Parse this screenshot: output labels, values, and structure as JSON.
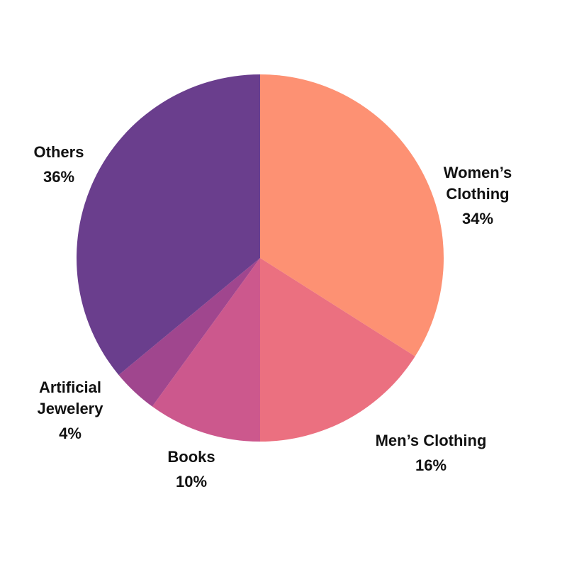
{
  "chart_data": {
    "type": "pie",
    "title": "",
    "slices": [
      {
        "label_lines": [
          "Women’s",
          "Clothing"
        ],
        "value": 34,
        "value_label": "34%",
        "color": "#FD9173"
      },
      {
        "label_lines": [
          "Men’s Clothing"
        ],
        "value": 16,
        "value_label": "16%",
        "color": "#EB7080"
      },
      {
        "label_lines": [
          "Books"
        ],
        "value": 10,
        "value_label": "10%",
        "color": "#CC588D"
      },
      {
        "label_lines": [
          "Artificial",
          "Jewelery"
        ],
        "value": 4,
        "value_label": "4%",
        "color": "#A0468E"
      },
      {
        "label_lines": [
          "Others"
        ],
        "value": 36,
        "value_label": "36%",
        "color": "#6A3E8D"
      }
    ],
    "start": "12 o'clock",
    "direction": "clockwise",
    "legend": "none",
    "label_position": "outside"
  }
}
